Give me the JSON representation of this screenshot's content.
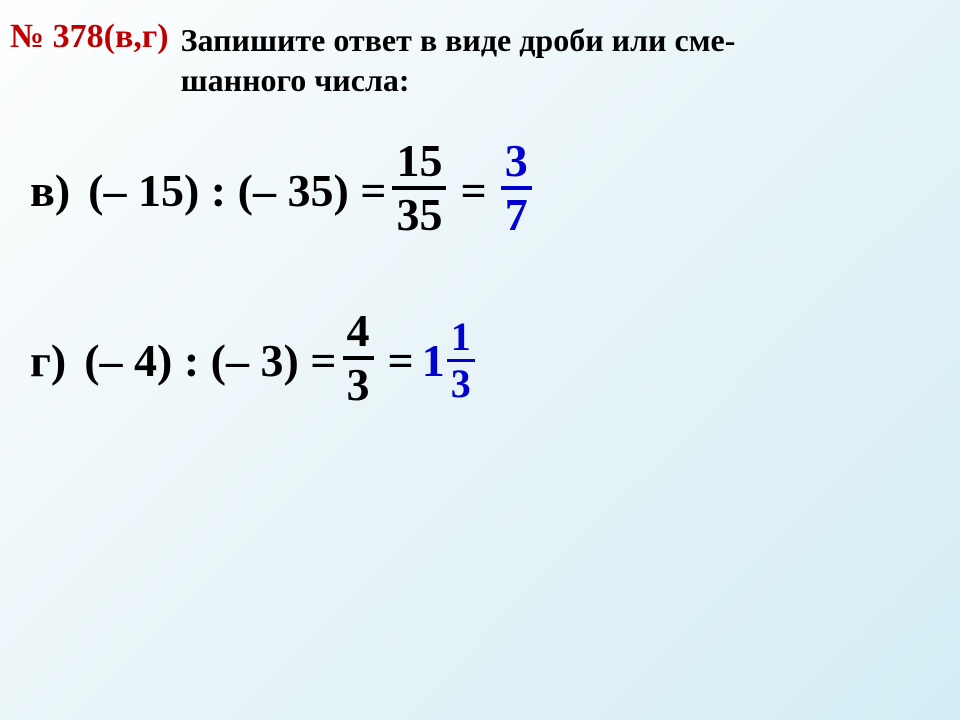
{
  "header": {
    "exercise_number": "№ 378(в,г)",
    "task_line1": "Запишите ответ в виде дроби или сме-",
    "task_line2": "шанного числа:"
  },
  "problems": {
    "v": {
      "label": "в)",
      "expression": "(– 15) : (– 35) =",
      "frac1": {
        "num": "15",
        "den": "35"
      },
      "eq": "=",
      "answer_frac": {
        "num": "3",
        "den": "7"
      }
    },
    "g": {
      "label": "г)",
      "expression": "(– 4) : (– 3) =",
      "frac1": {
        "num": "4",
        "den": "3"
      },
      "eq": "=",
      "answer_mixed": {
        "whole": "1",
        "num": "1",
        "den": "3"
      }
    }
  },
  "colors": {
    "exercise_num": "#c00000",
    "text": "#000000",
    "answer": "#0000d0",
    "bg_start": "#fdfefe",
    "bg_end": "#d4eef5"
  },
  "fonts": {
    "header_size_pt": 24,
    "problem_size_pt": 34,
    "family": "Georgia, serif",
    "weight": "bold"
  }
}
